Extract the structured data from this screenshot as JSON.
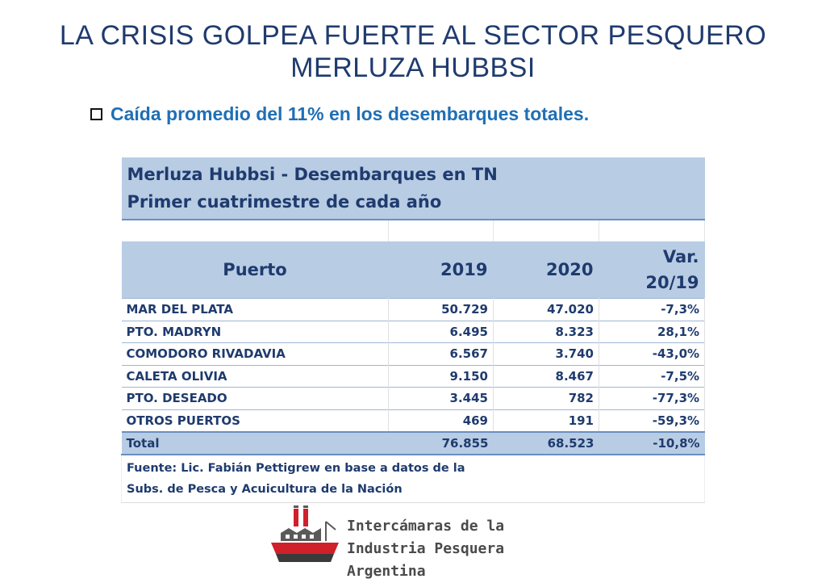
{
  "title": {
    "line1": "LA CRISIS GOLPEA FUERTE AL SECTOR PESQUERO",
    "line2": "MERLUZA HUBBSI"
  },
  "bullet": {
    "text": "Caída promedio del 11% en los desembarques totales."
  },
  "table": {
    "header_line1": "Merluza Hubbsi - Desembarques en TN",
    "header_line2": "Primer cuatrimestre de cada año",
    "columns": {
      "port": "Puerto",
      "y2019": "2019",
      "y2020": "2020",
      "var_line1": "Var.",
      "var_line2": "20/19"
    },
    "rows": [
      {
        "port": "MAR DEL PLATA",
        "y2019": "50.729",
        "y2020": "47.020",
        "var": "-7,3%"
      },
      {
        "port": "PTO. MADRYN",
        "y2019": "6.495",
        "y2020": "8.323",
        "var": "28,1%"
      },
      {
        "port": "COMODORO RIVADAVIA",
        "y2019": "6.567",
        "y2020": "3.740",
        "var": "-43,0%"
      },
      {
        "port": "CALETA OLIVIA",
        "y2019": "9.150",
        "y2020": "8.467",
        "var": "-7,5%"
      },
      {
        "port": "PTO. DESEADO",
        "y2019": "3.445",
        "y2020": "782",
        "var": "-77,3%"
      },
      {
        "port": "OTROS PUERTOS",
        "y2019": "469",
        "y2020": "191",
        "var": "-59,3%"
      }
    ],
    "total": {
      "port": "Total",
      "y2019": "76.855",
      "y2020": "68.523",
      "var": "-10,8%"
    },
    "source_line1": "Fuente: Lic. Fabián Pettigrew en base a datos de la",
    "source_line2": "Subs. de Pesca y Acuicultura de la Nación"
  },
  "logo": {
    "line1": "Intercámaras de la",
    "line2": "Industria Pesquera Argentina",
    "icon": "fishing-ship-icon",
    "colors": {
      "hull": "#d0202a",
      "structure": "#5a5a5a"
    }
  }
}
